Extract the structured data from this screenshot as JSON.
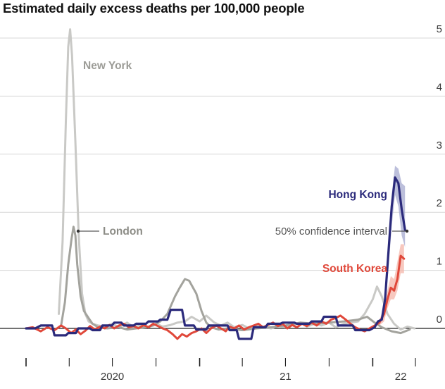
{
  "header": {
    "title": "Estimated daily excess deaths per 100,000 people"
  },
  "colors": {
    "new_york": "#c9c9c6",
    "london": "#a3a39d",
    "hong_kong": "#2b2a7b",
    "south_korea": "#e0483a",
    "hk_band": "#a6a9cf",
    "sk_band": "#f4b5a9",
    "grid": "#d7d7d7",
    "axis": "#1e1e1e"
  },
  "chart_data": {
    "type": "line",
    "title": "Estimated daily excess deaths per 100,000 people",
    "xlabel": "",
    "ylabel": "",
    "ylim": [
      -0.5,
      5.15
    ],
    "yticks": [
      0,
      1,
      2,
      3,
      4,
      5
    ],
    "ytick_labels": [
      "0",
      "1",
      "2",
      "3",
      "4",
      "5"
    ],
    "xticks_labels": [
      {
        "label": "2020",
        "date": "2020-07-01"
      },
      {
        "label": "21",
        "date": "2021-07-01"
      },
      {
        "label": "22",
        "date": "2022-03-01"
      }
    ],
    "grid": true,
    "annotations": [
      {
        "text": "50% confidence interval",
        "refers_to": "Hong Kong",
        "date": "2022-03-05",
        "value": 1.7
      }
    ],
    "series": [
      {
        "name": "New York",
        "label": "New York",
        "key": "new_york",
        "points": [
          [
            "2020-03-10",
            0.25
          ],
          [
            "2020-03-18",
            1.5
          ],
          [
            "2020-03-25",
            3.6
          ],
          [
            "2020-03-30",
            4.85
          ],
          [
            "2020-04-03",
            5.15
          ],
          [
            "2020-04-07",
            4.7
          ],
          [
            "2020-04-14",
            3.2
          ],
          [
            "2020-04-21",
            1.6
          ],
          [
            "2020-04-28",
            0.6
          ],
          [
            "2020-05-05",
            0.25
          ],
          [
            "2020-05-12",
            0.12
          ],
          [
            "2020-05-20",
            0.08
          ],
          [
            "2020-06-01",
            0.05
          ],
          [
            "2020-06-15",
            0.03
          ],
          [
            "2020-07-01",
            0.08
          ],
          [
            "2020-07-15",
            0.02
          ],
          [
            "2020-08-01",
            0.1
          ],
          [
            "2020-08-15",
            0.02
          ],
          [
            "2020-09-01",
            0.06
          ],
          [
            "2020-09-15",
            0.02
          ],
          [
            "2020-10-01",
            0.08
          ],
          [
            "2020-10-15",
            0.03
          ],
          [
            "2020-11-01",
            0.06
          ],
          [
            "2020-11-15",
            0.1
          ],
          [
            "2020-12-01",
            0.12
          ],
          [
            "2020-12-15",
            0.2
          ],
          [
            "2021-01-01",
            0.12
          ],
          [
            "2021-01-15",
            0.22
          ],
          [
            "2021-02-01",
            0.1
          ],
          [
            "2021-02-15",
            0.05
          ],
          [
            "2021-03-01",
            0.1
          ],
          [
            "2021-03-15",
            0.02
          ],
          [
            "2021-04-01",
            0.06
          ],
          [
            "2021-04-15",
            0.0
          ],
          [
            "2021-05-01",
            0.05
          ],
          [
            "2021-05-15",
            0.02
          ],
          [
            "2021-06-01",
            0.0
          ],
          [
            "2021-06-15",
            0.04
          ],
          [
            "2021-07-01",
            0.02
          ],
          [
            "2021-07-15",
            0.06
          ],
          [
            "2021-08-01",
            0.1
          ],
          [
            "2021-08-15",
            0.03
          ],
          [
            "2021-09-01",
            0.08
          ],
          [
            "2021-09-15",
            0.05
          ],
          [
            "2021-10-01",
            0.1
          ],
          [
            "2021-10-15",
            0.02
          ],
          [
            "2021-11-01",
            0.08
          ],
          [
            "2021-11-15",
            0.1
          ],
          [
            "2021-12-01",
            0.12
          ],
          [
            "2021-12-15",
            0.25
          ],
          [
            "2022-01-01",
            0.5
          ],
          [
            "2022-01-10",
            0.72
          ],
          [
            "2022-01-20",
            0.55
          ],
          [
            "2022-02-01",
            0.25
          ],
          [
            "2022-02-15",
            0.08
          ],
          [
            "2022-03-01",
            -0.02
          ],
          [
            "2022-03-15",
            0.03
          ],
          [
            "2022-03-30",
            0.0
          ]
        ]
      },
      {
        "name": "London",
        "label": "London",
        "key": "london",
        "points": [
          [
            "2020-03-15",
            0.05
          ],
          [
            "2020-03-23",
            0.45
          ],
          [
            "2020-03-30",
            1.1
          ],
          [
            "2020-04-06",
            1.55
          ],
          [
            "2020-04-10",
            1.75
          ],
          [
            "2020-04-14",
            1.6
          ],
          [
            "2020-04-18",
            1.1
          ],
          [
            "2020-04-25",
            0.55
          ],
          [
            "2020-05-02",
            0.3
          ],
          [
            "2020-05-10",
            0.2
          ],
          [
            "2020-05-20",
            0.08
          ],
          [
            "2020-06-01",
            0.02
          ],
          [
            "2020-06-20",
            0.0
          ],
          [
            "2020-07-15",
            0.02
          ],
          [
            "2020-08-01",
            -0.02
          ],
          [
            "2020-08-20",
            0.0
          ],
          [
            "2020-09-10",
            0.02
          ],
          [
            "2020-09-25",
            0.05
          ],
          [
            "2020-10-10",
            0.12
          ],
          [
            "2020-10-25",
            0.25
          ],
          [
            "2020-11-10",
            0.55
          ],
          [
            "2020-11-20",
            0.7
          ],
          [
            "2020-12-01",
            0.85
          ],
          [
            "2020-12-10",
            0.82
          ],
          [
            "2020-12-25",
            0.6
          ],
          [
            "2021-01-05",
            0.3
          ],
          [
            "2021-01-15",
            0.1
          ],
          [
            "2021-01-25",
            0.02
          ],
          [
            "2021-02-10",
            -0.02
          ],
          [
            "2021-03-01",
            0.0
          ],
          [
            "2021-04-01",
            -0.03
          ],
          [
            "2021-05-01",
            0.0
          ],
          [
            "2021-06-01",
            0.02
          ],
          [
            "2021-07-01",
            0.05
          ],
          [
            "2021-08-01",
            0.1
          ],
          [
            "2021-09-01",
            0.08
          ],
          [
            "2021-10-01",
            0.1
          ],
          [
            "2021-11-01",
            0.12
          ],
          [
            "2021-12-01",
            0.15
          ],
          [
            "2021-12-20",
            0.2
          ],
          [
            "2022-01-05",
            0.1
          ],
          [
            "2022-01-20",
            0.02
          ],
          [
            "2022-02-10",
            -0.05
          ],
          [
            "2022-03-01",
            -0.08
          ],
          [
            "2022-03-20",
            -0.02
          ]
        ]
      },
      {
        "name": "Hong Kong",
        "label": "Hong Kong",
        "key": "hong_kong",
        "points": [
          [
            "2020-01-01",
            0.0
          ],
          [
            "2020-01-20",
            0.0
          ],
          [
            "2020-02-01",
            0.05
          ],
          [
            "2020-02-25",
            0.05
          ],
          [
            "2020-03-01",
            -0.12
          ],
          [
            "2020-03-25",
            -0.12
          ],
          [
            "2020-03-30",
            -0.08
          ],
          [
            "2020-04-15",
            -0.08
          ],
          [
            "2020-04-20",
            0.0
          ],
          [
            "2020-05-15",
            0.0
          ],
          [
            "2020-05-20",
            -0.03
          ],
          [
            "2020-06-05",
            -0.03
          ],
          [
            "2020-06-10",
            0.05
          ],
          [
            "2020-06-30",
            0.05
          ],
          [
            "2020-07-05",
            0.1
          ],
          [
            "2020-07-20",
            0.1
          ],
          [
            "2020-07-25",
            0.05
          ],
          [
            "2020-08-15",
            0.05
          ],
          [
            "2020-08-20",
            0.08
          ],
          [
            "2020-09-10",
            0.08
          ],
          [
            "2020-09-15",
            0.12
          ],
          [
            "2020-10-05",
            0.12
          ],
          [
            "2020-10-10",
            0.15
          ],
          [
            "2020-10-25",
            0.15
          ],
          [
            "2020-11-01",
            0.32
          ],
          [
            "2020-11-25",
            0.32
          ],
          [
            "2020-12-01",
            0.05
          ],
          [
            "2020-12-20",
            0.05
          ],
          [
            "2020-12-25",
            -0.02
          ],
          [
            "2021-01-15",
            -0.02
          ],
          [
            "2021-01-20",
            0.05
          ],
          [
            "2021-03-01",
            0.05
          ],
          [
            "2021-03-05",
            -0.03
          ],
          [
            "2021-03-20",
            -0.03
          ],
          [
            "2021-03-25",
            -0.18
          ],
          [
            "2021-04-20",
            -0.18
          ],
          [
            "2021-04-25",
            0.02
          ],
          [
            "2021-05-20",
            0.02
          ],
          [
            "2021-05-25",
            0.08
          ],
          [
            "2021-06-20",
            0.08
          ],
          [
            "2021-06-25",
            0.1
          ],
          [
            "2021-07-20",
            0.1
          ],
          [
            "2021-07-25",
            0.08
          ],
          [
            "2021-08-20",
            0.08
          ],
          [
            "2021-08-25",
            0.12
          ],
          [
            "2021-09-15",
            0.12
          ],
          [
            "2021-09-20",
            0.2
          ],
          [
            "2021-10-15",
            0.2
          ],
          [
            "2021-10-20",
            0.05
          ],
          [
            "2021-11-20",
            0.05
          ],
          [
            "2021-11-25",
            -0.03
          ],
          [
            "2021-12-25",
            -0.03
          ],
          [
            "2022-01-05",
            0.02
          ],
          [
            "2022-01-12",
            0.12
          ],
          [
            "2022-01-20",
            0.15
          ],
          [
            "2022-01-27",
            0.5
          ],
          [
            "2022-02-03",
            1.3
          ],
          [
            "2022-02-10",
            2.1
          ],
          [
            "2022-02-17",
            2.6
          ],
          [
            "2022-02-24",
            2.5
          ],
          [
            "2022-03-03",
            2.05
          ],
          [
            "2022-03-10",
            1.7
          ]
        ],
        "band": {
          "dates": [
            "2022-01-20",
            "2022-01-27",
            "2022-02-03",
            "2022-02-10",
            "2022-02-17",
            "2022-02-24",
            "2022-03-03",
            "2022-03-10"
          ],
          "lower": [
            0.1,
            0.35,
            1.0,
            1.75,
            2.3,
            2.1,
            1.6,
            1.4
          ],
          "upper": [
            0.2,
            0.6,
            1.5,
            2.3,
            2.8,
            2.75,
            2.5,
            2.45
          ]
        }
      },
      {
        "name": "South Korea",
        "label": "South Korea",
        "key": "south_korea",
        "points": [
          [
            "2020-01-01",
            0.0
          ],
          [
            "2020-01-15",
            0.02
          ],
          [
            "2020-02-01",
            -0.05
          ],
          [
            "2020-02-15",
            0.02
          ],
          [
            "2020-03-01",
            -0.03
          ],
          [
            "2020-03-15",
            0.05
          ],
          [
            "2020-03-25",
            0.0
          ],
          [
            "2020-04-05",
            -0.08
          ],
          [
            "2020-04-15",
            -0.02
          ],
          [
            "2020-04-25",
            -0.1
          ],
          [
            "2020-05-05",
            -0.04
          ],
          [
            "2020-05-15",
            0.04
          ],
          [
            "2020-05-25",
            -0.02
          ],
          [
            "2020-06-05",
            0.03
          ],
          [
            "2020-06-15",
            0.0
          ],
          [
            "2020-06-25",
            0.06
          ],
          [
            "2020-07-05",
            0.0
          ],
          [
            "2020-07-15",
            0.05
          ],
          [
            "2020-07-25",
            0.08
          ],
          [
            "2020-08-05",
            0.02
          ],
          [
            "2020-08-15",
            0.04
          ],
          [
            "2020-08-25",
            0.0
          ],
          [
            "2020-09-05",
            0.06
          ],
          [
            "2020-09-15",
            0.02
          ],
          [
            "2020-09-25",
            0.08
          ],
          [
            "2020-10-05",
            0.04
          ],
          [
            "2020-10-15",
            0.0
          ],
          [
            "2020-10-25",
            -0.03
          ],
          [
            "2020-11-05",
            -0.1
          ],
          [
            "2020-11-15",
            -0.18
          ],
          [
            "2020-11-25",
            -0.1
          ],
          [
            "2020-12-05",
            -0.14
          ],
          [
            "2020-12-15",
            -0.08
          ],
          [
            "2020-12-25",
            -0.05
          ],
          [
            "2021-01-05",
            0.0
          ],
          [
            "2021-01-15",
            -0.08
          ],
          [
            "2021-01-25",
            0.0
          ],
          [
            "2021-02-05",
            0.05
          ],
          [
            "2021-02-15",
            0.0
          ],
          [
            "2021-02-25",
            -0.05
          ],
          [
            "2021-03-05",
            0.03
          ],
          [
            "2021-03-15",
            0.0
          ],
          [
            "2021-03-25",
            0.05
          ],
          [
            "2021-04-05",
            -0.02
          ],
          [
            "2021-04-15",
            0.02
          ],
          [
            "2021-04-25",
            0.05
          ],
          [
            "2021-05-05",
            0.08
          ],
          [
            "2021-05-15",
            0.02
          ],
          [
            "2021-05-25",
            0.06
          ],
          [
            "2021-06-05",
            0.1
          ],
          [
            "2021-06-15",
            0.04
          ],
          [
            "2021-06-25",
            0.08
          ],
          [
            "2021-07-05",
            0.0
          ],
          [
            "2021-07-15",
            0.06
          ],
          [
            "2021-07-25",
            0.02
          ],
          [
            "2021-08-05",
            0.08
          ],
          [
            "2021-08-15",
            0.04
          ],
          [
            "2021-08-25",
            0.1
          ],
          [
            "2021-09-05",
            0.05
          ],
          [
            "2021-09-15",
            0.12
          ],
          [
            "2021-09-25",
            0.08
          ],
          [
            "2021-10-05",
            0.15
          ],
          [
            "2021-10-15",
            0.18
          ],
          [
            "2021-10-25",
            0.22
          ],
          [
            "2021-11-05",
            0.15
          ],
          [
            "2021-11-15",
            0.08
          ],
          [
            "2021-11-25",
            0.02
          ],
          [
            "2021-12-05",
            -0.02
          ],
          [
            "2021-12-15",
            -0.05
          ],
          [
            "2021-12-25",
            0.0
          ],
          [
            "2022-01-05",
            0.05
          ],
          [
            "2022-01-15",
            0.1
          ],
          [
            "2022-01-25",
            0.25
          ],
          [
            "2022-02-01",
            0.5
          ],
          [
            "2022-02-08",
            0.7
          ],
          [
            "2022-02-15",
            0.65
          ],
          [
            "2022-02-22",
            0.85
          ],
          [
            "2022-03-01",
            1.25
          ],
          [
            "2022-03-08",
            1.2
          ]
        ],
        "band": {
          "dates": [
            "2022-01-15",
            "2022-01-25",
            "2022-02-01",
            "2022-02-08",
            "2022-02-15",
            "2022-02-22",
            "2022-03-01",
            "2022-03-08"
          ],
          "lower": [
            0.05,
            0.12,
            0.35,
            0.5,
            0.5,
            0.65,
            0.95,
            0.95
          ],
          "upper": [
            0.15,
            0.35,
            0.65,
            0.9,
            0.85,
            1.15,
            1.45,
            1.45
          ]
        }
      }
    ]
  }
}
